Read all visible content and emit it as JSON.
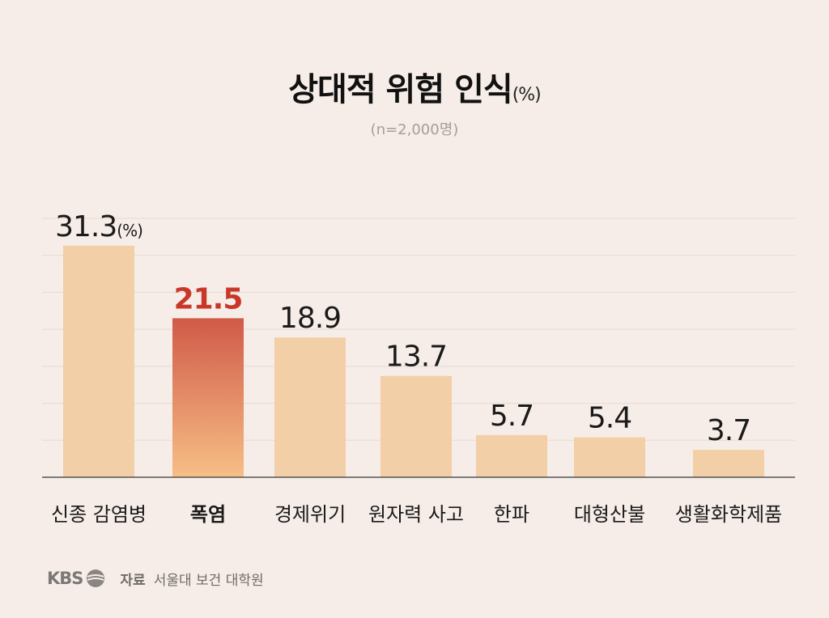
{
  "header": {
    "title": "상대적 위험 인식",
    "title_unit": "(%)",
    "subtitle": "(n=2,000명)"
  },
  "chart_data": {
    "type": "bar",
    "title": "상대적 위험 인식(%)",
    "subtitle": "(n=2,000명)",
    "categories": [
      "신종 감염병",
      "폭염",
      "경제위기",
      "원자력 사고",
      "한파",
      "대형산불",
      "생활화학제품"
    ],
    "values": [
      31.3,
      21.5,
      18.9,
      13.7,
      5.7,
      5.4,
      3.7
    ],
    "value_labels": [
      "31.3",
      "21.5",
      "18.9",
      "13.7",
      "5.7",
      "5.4",
      "3.7"
    ],
    "first_label_unit": "(%)",
    "highlight_index": 1,
    "ylim": [
      0,
      35
    ],
    "grid": true,
    "colors": {
      "bar": "#f2cfa6",
      "highlight_top": "#d05a48",
      "highlight_bottom": "#f7bf86",
      "highlight_text": "#c8372a",
      "grid": "#e6d9d2",
      "axis": "#555555"
    }
  },
  "footer": {
    "logo_text": "KBS",
    "source_label": "자료",
    "source_text": "서울대 보건 대학원"
  }
}
